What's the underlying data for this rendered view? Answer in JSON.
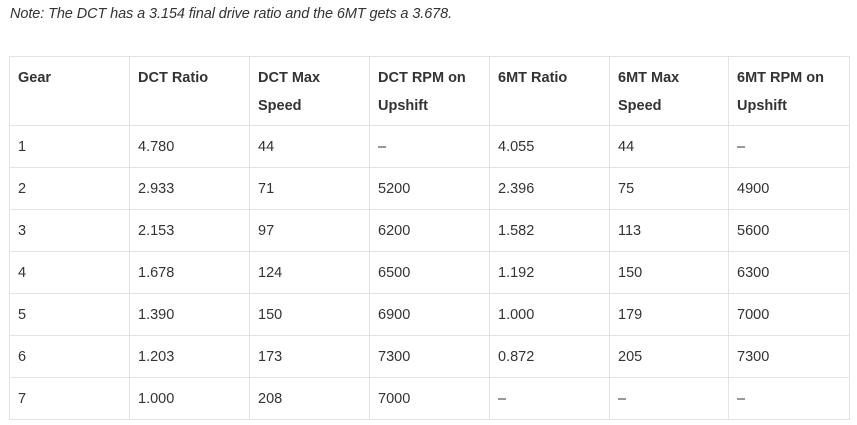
{
  "note": "Note: The DCT has a 3.154 final drive ratio and the 6MT gets a 3.678.",
  "table": {
    "headers": [
      "Gear",
      "DCT Ratio",
      "DCT Max Speed",
      "DCT RPM on Upshift",
      "6MT Ratio",
      "6MT Max Speed",
      "6MT RPM on Upshift"
    ],
    "rows": [
      [
        "1",
        "4.780",
        "44",
        "–",
        "4.055",
        "44",
        "–"
      ],
      [
        "2",
        "2.933",
        "71",
        "5200",
        "2.396",
        "75",
        "4900"
      ],
      [
        "3",
        "2.153",
        "97",
        "6200",
        "1.582",
        "113",
        "5600"
      ],
      [
        "4",
        "1.678",
        "124",
        "6500",
        "1.192",
        "150",
        "6300"
      ],
      [
        "5",
        "1.390",
        "150",
        "6900",
        "1.000",
        "179",
        "7000"
      ],
      [
        "6",
        "1.203",
        "173",
        "7300",
        "0.872",
        "205",
        "7300"
      ],
      [
        "7",
        "1.000",
        "208",
        "7000",
        "–",
        "–",
        "–"
      ]
    ]
  }
}
